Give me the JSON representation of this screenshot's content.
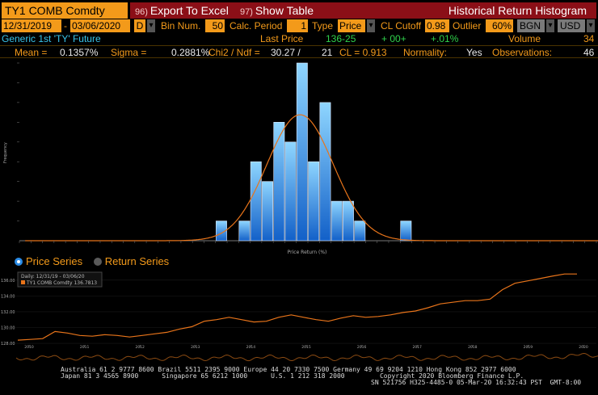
{
  "header": {
    "ticker": "TY1 COMB Comdty",
    "export_num": "96)",
    "export_label": "Export To Excel",
    "table_num": "97)",
    "table_label": "Show Table",
    "title": "Historical Return Histogram"
  },
  "controls": {
    "start_date": "12/31/2019",
    "end_date": "03/06/2020",
    "periodicity": "D",
    "bin_label": "Bin Num.",
    "bin_value": "50",
    "calc_label": "Calc. Period",
    "calc_value": "1",
    "type_label": "Type",
    "type_value": "Price",
    "cl_label": "CL Cutoff",
    "cl_value": "0.98",
    "outlier_label": "Outlier",
    "outlier_value": "60%",
    "source": "BGN",
    "currency": "USD"
  },
  "security": {
    "name": "Generic 1st 'TY' Future",
    "last_price_label": "Last Price",
    "last_price": "136-25",
    "change": "+ 00+",
    "change_pct": "+.01%",
    "volume_label": "Volume",
    "volume": "34"
  },
  "stats": {
    "mean_label": "Mean =",
    "mean": "0.1357%",
    "sigma_label": "Sigma =",
    "sigma": "0.2881%",
    "chi_label": "Chi2 / Ndf =",
    "chi": "30.27 /",
    "ndf": "21",
    "cl_label": "CL = 0.913",
    "normality_label": "Normality:",
    "normality": "Yes",
    "obs_label": "Observations:",
    "obs": "46"
  },
  "radios": {
    "price_series": "Price Series",
    "return_series": "Return Series",
    "selected": "price_series"
  },
  "chart_data": [
    {
      "type": "bar",
      "xlabel": "Price Return (%)",
      "ylabel": "Frequency",
      "bins": 50,
      "values": [
        0,
        0,
        0,
        0,
        0,
        0,
        0,
        0,
        0,
        0,
        0,
        0,
        0,
        0,
        0,
        0,
        0,
        1,
        0,
        1,
        4,
        3,
        6,
        5,
        9,
        4,
        7,
        2,
        2,
        1,
        0,
        0,
        0,
        1,
        0,
        0,
        0,
        0,
        0,
        0,
        0,
        0,
        0,
        0,
        0,
        0,
        0,
        0,
        0,
        0
      ],
      "ylim": [
        0,
        9
      ],
      "overlay": "normal fit"
    },
    {
      "type": "line",
      "legend_title": "Daily: 12/31/19 - 03/06/20",
      "series_name": "TY1 COMB Comdty 136.7813",
      "x_ticks": [
        "2010",
        "2011",
        "2012",
        "2013",
        "2014",
        "2015",
        "2016",
        "2017",
        "2018",
        "2019",
        "2020"
      ],
      "y_ticks": [
        "136.00",
        "134.00",
        "132.00",
        "130.00",
        "128.00"
      ],
      "ylim": [
        127.8,
        136.8
      ],
      "x": [
        0,
        1,
        2,
        3,
        4,
        5,
        6,
        7,
        8,
        9,
        10,
        11,
        12,
        13,
        14,
        15,
        16,
        17,
        18,
        19,
        20,
        21,
        22,
        23,
        24,
        25,
        26,
        27,
        28,
        29,
        30,
        31,
        32,
        33,
        34,
        35,
        36,
        37,
        38,
        39,
        40,
        41,
        42,
        43,
        44,
        45
      ],
      "values": [
        128.4,
        128.5,
        128.6,
        129.5,
        129.3,
        129.0,
        128.9,
        129.1,
        129.0,
        128.8,
        129.0,
        129.2,
        129.4,
        129.8,
        130.1,
        130.8,
        131.0,
        131.3,
        131.0,
        130.7,
        130.8,
        131.3,
        131.6,
        131.3,
        131.0,
        130.8,
        131.2,
        131.5,
        131.3,
        131.4,
        131.6,
        131.9,
        132.1,
        132.5,
        133.0,
        133.2,
        133.4,
        133.4,
        133.6,
        134.8,
        135.6,
        135.9,
        136.2,
        136.5,
        136.78,
        136.78
      ]
    }
  ],
  "footer": {
    "line1": "Australia 61 2 9777 8600 Brazil 5511 2395 9000 Europe 44 20 7330 7500 Germany 49 69 9204 1210 Hong Kong 852 2977 6000",
    "line2": "Japan 81 3 4565 8900      Singapore 65 6212 1000      U.S. 1 212 318 2000         Copyright 2020 Bloomberg Finance L.P.",
    "line3": "SN 521756 H325-4485-0 05-Mar-20 16:32:43 PST  GMT-8:00"
  },
  "colors": {
    "orange": "#f39a1a",
    "red": "#8b0f17",
    "cyan": "#39c4ea",
    "green": "#2fd24b",
    "bar_top": "#8fd6ff",
    "bar_bottom": "#1260c8"
  }
}
